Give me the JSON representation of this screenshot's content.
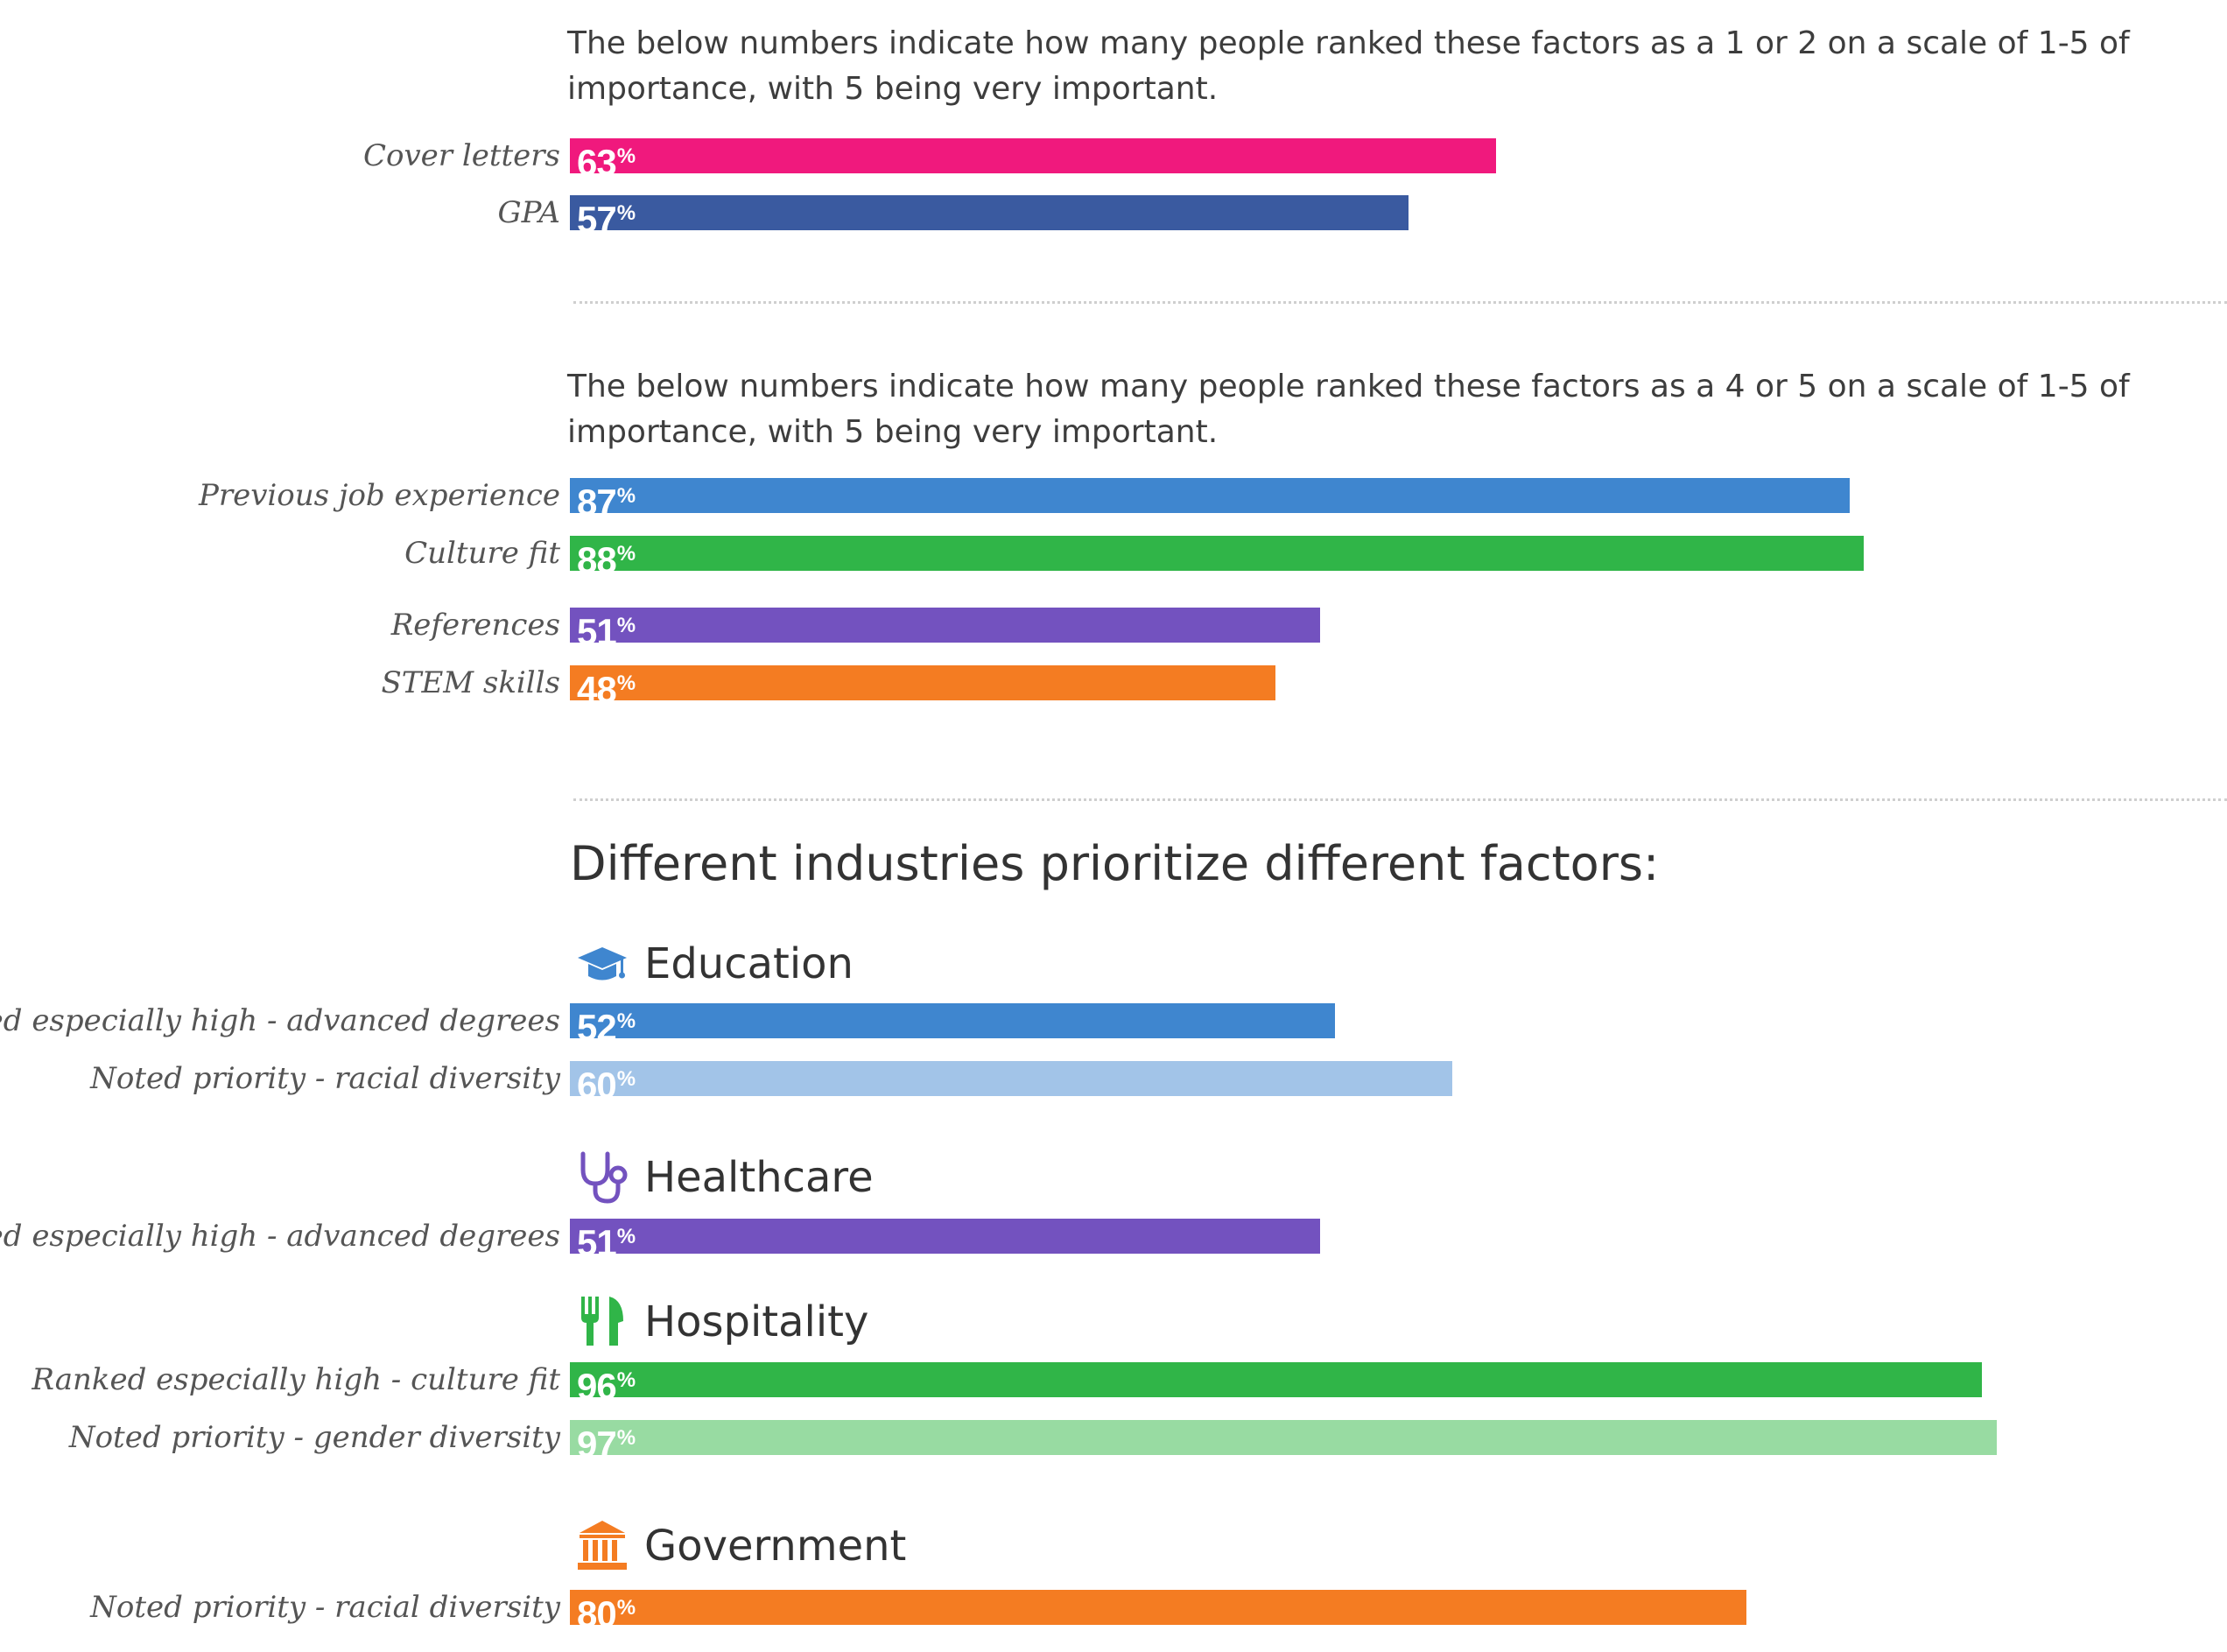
{
  "intro_low": "The below numbers indicate how many people ranked these factors as a 1 or 2 on a scale of 1-5 of importance, with 5 being very important.",
  "intro_high": "The below numbers indicate how many people ranked these factors as a 4 or 5 on a scale of 1-5 of importance, with 5 being very important.",
  "industries_heading": "Different industries prioritize different factors:",
  "industries": {
    "education": {
      "name": "Education",
      "icon": "graduation-cap-icon",
      "color": "#3f86cf"
    },
    "healthcare": {
      "name": "Healthcare",
      "icon": "stethoscope-icon",
      "color": "#7352bf"
    },
    "hospitality": {
      "name": "Hospitality",
      "icon": "fork-knife-icon",
      "color": "#30b548"
    },
    "government": {
      "name": "Government",
      "icon": "government-building-icon",
      "color": "#f47c22"
    }
  },
  "percent_symbol": "%",
  "chart_data": [
    {
      "type": "bar",
      "orientation": "horizontal",
      "categories": [
        "Cover letters",
        "GPA"
      ],
      "values": [
        63,
        57
      ],
      "colors": [
        "#f0197d",
        "#3a5aa0"
      ],
      "xlim": [
        0,
        100
      ]
    },
    {
      "type": "bar",
      "orientation": "horizontal",
      "categories": [
        "Previous job experience",
        "Culture fit",
        "References",
        "STEM skills"
      ],
      "values": [
        87,
        88,
        51,
        48
      ],
      "colors": [
        "#3f86cf",
        "#30b548",
        "#7352bf",
        "#f47c22"
      ],
      "xlim": [
        0,
        100
      ]
    },
    {
      "type": "bar",
      "orientation": "horizontal",
      "group": "Education",
      "categories": [
        "Ranked especially high - advanced degrees",
        "Noted priority - racial diversity"
      ],
      "values": [
        52,
        60
      ],
      "colors": [
        "#3f86cf",
        "#a2c4e8"
      ],
      "xlim": [
        0,
        100
      ]
    },
    {
      "type": "bar",
      "orientation": "horizontal",
      "group": "Healthcare",
      "categories": [
        "Ranked especially high - advanced degrees"
      ],
      "values": [
        51
      ],
      "colors": [
        "#7352bf"
      ],
      "xlim": [
        0,
        100
      ]
    },
    {
      "type": "bar",
      "orientation": "horizontal",
      "group": "Hospitality",
      "categories": [
        "Ranked especially high - culture fit",
        "Noted priority - gender diversity"
      ],
      "values": [
        96,
        97
      ],
      "colors": [
        "#30b548",
        "#98dba2"
      ],
      "xlim": [
        0,
        100
      ]
    },
    {
      "type": "bar",
      "orientation": "horizontal",
      "group": "Government",
      "categories": [
        "Noted priority - racial diversity"
      ],
      "values": [
        80
      ],
      "colors": [
        "#f47c22"
      ],
      "xlim": [
        0,
        100
      ]
    }
  ]
}
